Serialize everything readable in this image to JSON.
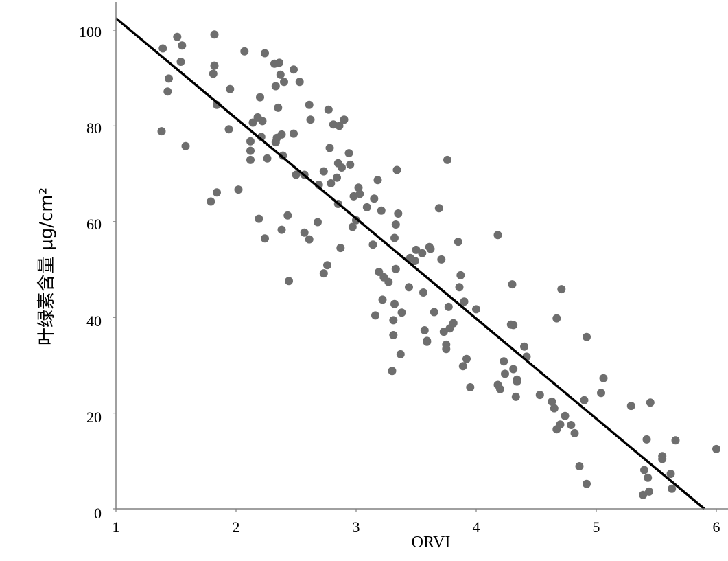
{
  "chart_data": {
    "type": "scatter",
    "xlabel": "ORVI",
    "ylabel": "叶绿素含量  μg/cm²",
    "xlim": [
      1,
      6
    ],
    "ylim": [
      0,
      100
    ],
    "x_ticks": [
      "1",
      "2",
      "3",
      "4",
      "5",
      "6"
    ],
    "y_ticks": [
      "0",
      "20",
      "40",
      "60",
      "80",
      "100"
    ],
    "grid": false,
    "colors": {
      "points": "#6e6e6e",
      "trendline": "#000000",
      "axes": "#808080"
    },
    "trendline": {
      "x": [
        1.0,
        5.9
      ],
      "y": [
        102.5,
        0
      ]
    },
    "points": [
      [
        1.38,
        78.9
      ],
      [
        1.39,
        96.2
      ],
      [
        1.43,
        87.2
      ],
      [
        1.44,
        89.9
      ],
      [
        1.51,
        98.6
      ],
      [
        1.54,
        93.4
      ],
      [
        1.55,
        96.8
      ],
      [
        1.58,
        75.8
      ],
      [
        1.79,
        64.2
      ],
      [
        1.81,
        90.9
      ],
      [
        1.82,
        99.1
      ],
      [
        1.82,
        92.6
      ],
      [
        1.84,
        84.4
      ],
      [
        1.84,
        66.1
      ],
      [
        1.94,
        79.3
      ],
      [
        1.95,
        87.7
      ],
      [
        2.02,
        66.7
      ],
      [
        2.07,
        95.6
      ],
      [
        2.12,
        74.8
      ],
      [
        2.12,
        72.9
      ],
      [
        2.12,
        76.8
      ],
      [
        2.14,
        80.7
      ],
      [
        2.18,
        81.8
      ],
      [
        2.19,
        60.6
      ],
      [
        2.2,
        86.0
      ],
      [
        2.21,
        77.7
      ],
      [
        2.22,
        81.0
      ],
      [
        2.24,
        56.5
      ],
      [
        2.24,
        95.2
      ],
      [
        2.26,
        73.2
      ],
      [
        2.32,
        93.0
      ],
      [
        2.33,
        76.6
      ],
      [
        2.33,
        88.3
      ],
      [
        2.34,
        77.5
      ],
      [
        2.35,
        83.8
      ],
      [
        2.36,
        93.2
      ],
      [
        2.37,
        90.7
      ],
      [
        2.38,
        78.2
      ],
      [
        2.38,
        58.3
      ],
      [
        2.39,
        73.8
      ],
      [
        2.4,
        89.2
      ],
      [
        2.43,
        61.3
      ],
      [
        2.44,
        47.6
      ],
      [
        2.48,
        91.8
      ],
      [
        2.48,
        78.4
      ],
      [
        2.5,
        69.8
      ],
      [
        2.53,
        89.2
      ],
      [
        2.57,
        57.7
      ],
      [
        2.57,
        69.8
      ],
      [
        2.61,
        56.3
      ],
      [
        2.61,
        84.4
      ],
      [
        2.62,
        81.3
      ],
      [
        2.68,
        59.9
      ],
      [
        2.69,
        67.7
      ],
      [
        2.73,
        70.5
      ],
      [
        2.73,
        49.2
      ],
      [
        2.76,
        50.9
      ],
      [
        2.77,
        83.4
      ],
      [
        2.78,
        75.4
      ],
      [
        2.79,
        68.0
      ],
      [
        2.81,
        80.3
      ],
      [
        2.84,
        69.2
      ],
      [
        2.85,
        72.2
      ],
      [
        2.85,
        63.7
      ],
      [
        2.86,
        80.0
      ],
      [
        2.87,
        54.5
      ],
      [
        2.88,
        71.3
      ],
      [
        2.9,
        81.3
      ],
      [
        2.94,
        74.3
      ],
      [
        2.95,
        71.9
      ],
      [
        2.97,
        58.9
      ],
      [
        2.98,
        65.3
      ],
      [
        3.0,
        60.3
      ],
      [
        3.02,
        67.1
      ],
      [
        3.03,
        65.8
      ],
      [
        3.09,
        63.0
      ],
      [
        3.14,
        55.2
      ],
      [
        3.15,
        64.8
      ],
      [
        3.16,
        40.4
      ],
      [
        3.18,
        68.7
      ],
      [
        3.19,
        49.5
      ],
      [
        3.21,
        62.3
      ],
      [
        3.22,
        43.7
      ],
      [
        3.23,
        48.4
      ],
      [
        3.27,
        47.4
      ],
      [
        3.3,
        28.8
      ],
      [
        3.31,
        36.3
      ],
      [
        3.31,
        39.4
      ],
      [
        3.32,
        56.6
      ],
      [
        3.32,
        42.8
      ],
      [
        3.33,
        50.1
      ],
      [
        3.33,
        59.4
      ],
      [
        3.34,
        70.8
      ],
      [
        3.35,
        61.7
      ],
      [
        3.37,
        32.3
      ],
      [
        3.38,
        41.0
      ],
      [
        3.44,
        46.3
      ],
      [
        3.45,
        52.4
      ],
      [
        3.49,
        51.8
      ],
      [
        3.5,
        54.1
      ],
      [
        3.55,
        53.4
      ],
      [
        3.56,
        45.2
      ],
      [
        3.57,
        37.3
      ],
      [
        3.59,
        35.1
      ],
      [
        3.59,
        34.9
      ],
      [
        3.61,
        54.7
      ],
      [
        3.62,
        54.3
      ],
      [
        3.65,
        41.1
      ],
      [
        3.69,
        62.8
      ],
      [
        3.71,
        52.1
      ],
      [
        3.73,
        37.0
      ],
      [
        3.75,
        33.4
      ],
      [
        3.75,
        34.3
      ],
      [
        3.76,
        72.9
      ],
      [
        3.77,
        42.2
      ],
      [
        3.78,
        37.7
      ],
      [
        3.81,
        38.8
      ],
      [
        3.85,
        55.8
      ],
      [
        3.86,
        46.3
      ],
      [
        3.87,
        48.8
      ],
      [
        3.89,
        29.8
      ],
      [
        3.9,
        43.3
      ],
      [
        3.92,
        31.3
      ],
      [
        3.95,
        25.4
      ],
      [
        4.0,
        41.7
      ],
      [
        4.18,
        57.2
      ],
      [
        4.18,
        25.9
      ],
      [
        4.2,
        25.0
      ],
      [
        4.23,
        30.8
      ],
      [
        4.24,
        28.2
      ],
      [
        4.29,
        38.5
      ],
      [
        4.3,
        46.9
      ],
      [
        4.31,
        38.4
      ],
      [
        4.31,
        29.2
      ],
      [
        4.33,
        23.4
      ],
      [
        4.34,
        26.6
      ],
      [
        4.34,
        27.0
      ],
      [
        4.4,
        33.9
      ],
      [
        4.42,
        31.8
      ],
      [
        4.53,
        23.8
      ],
      [
        4.63,
        22.4
      ],
      [
        4.65,
        21.0
      ],
      [
        4.67,
        16.6
      ],
      [
        4.67,
        39.8
      ],
      [
        4.7,
        17.6
      ],
      [
        4.71,
        45.9
      ],
      [
        4.74,
        19.4
      ],
      [
        4.79,
        17.5
      ],
      [
        4.82,
        15.8
      ],
      [
        4.86,
        8.9
      ],
      [
        4.9,
        22.7
      ],
      [
        4.92,
        5.2
      ],
      [
        4.92,
        35.9
      ],
      [
        5.04,
        24.2
      ],
      [
        5.06,
        27.3
      ],
      [
        5.29,
        21.5
      ],
      [
        5.39,
        2.9
      ],
      [
        5.4,
        8.1
      ],
      [
        5.42,
        14.5
      ],
      [
        5.43,
        6.5
      ],
      [
        5.44,
        3.6
      ],
      [
        5.45,
        22.2
      ],
      [
        5.55,
        10.4
      ],
      [
        5.55,
        11.0
      ],
      [
        5.62,
        7.3
      ],
      [
        5.63,
        4.2
      ],
      [
        5.66,
        14.3
      ],
      [
        6.0,
        12.5
      ]
    ]
  }
}
